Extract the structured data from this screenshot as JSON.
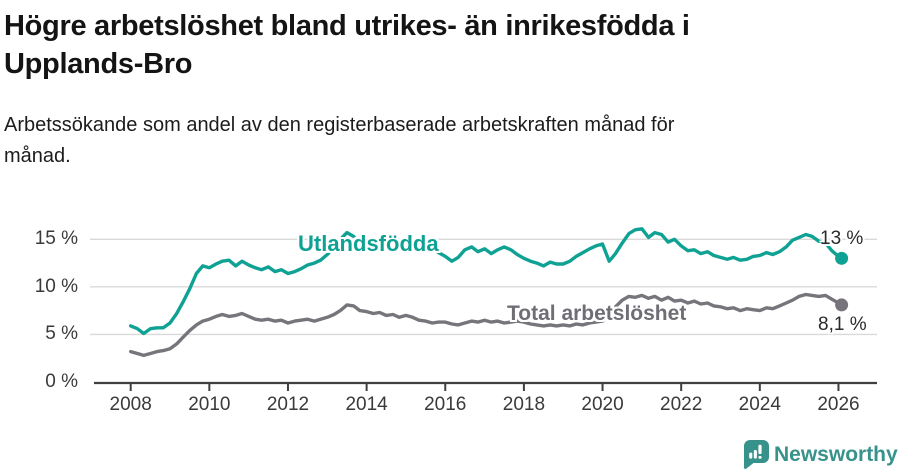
{
  "header": {
    "title_lines": [
      "Högre arbetslöshet bland utrikes- än inrikesfödda i",
      "Upplands-Bro"
    ],
    "subtitle_lines": [
      "Arbetssökande som andel av den registerbaserade arbetskraften månad för",
      "månad."
    ]
  },
  "footer": {
    "brand": "Newsworthy",
    "logo_icon": "bar-chart-speech-bubble-icon",
    "brand_color": "#37928B"
  },
  "colors": {
    "utlandsfodda": "#0FA294",
    "total_arbetsloshet": "#77757B",
    "grid": "#D9D9D9",
    "axis": "#3F3F3F",
    "tick_text": "#3A3A3A",
    "annotation_text": "#2B2B2B"
  },
  "chart_data": {
    "type": "line",
    "title": "Högre arbetslöshet bland utrikes- än inrikesfödda i Upplands-Bro",
    "subtitle": "Arbetssökande som andel av den registerbaserade arbetskraften månad för månad.",
    "x_unit": "year (monthly data sampled every 2 months)",
    "ylabel": "",
    "xlabel": "",
    "ylim": [
      0,
      16.5
    ],
    "xlim": [
      2007.1,
      2027.0
    ],
    "grid": "horizontal",
    "legend": "inline labels on lines",
    "x": [
      2008,
      2008.17,
      2008.33,
      2008.5,
      2008.67,
      2008.83,
      2009,
      2009.17,
      2009.33,
      2009.5,
      2009.67,
      2009.83,
      2010,
      2010.17,
      2010.33,
      2010.5,
      2010.67,
      2010.83,
      2011,
      2011.17,
      2011.33,
      2011.5,
      2011.67,
      2011.83,
      2012,
      2012.17,
      2012.33,
      2012.5,
      2012.67,
      2012.83,
      2013,
      2013.17,
      2013.33,
      2013.5,
      2013.67,
      2013.83,
      2014,
      2014.17,
      2014.33,
      2014.5,
      2014.67,
      2014.83,
      2015,
      2015.17,
      2015.33,
      2015.5,
      2015.67,
      2015.83,
      2016,
      2016.17,
      2016.33,
      2016.5,
      2016.67,
      2016.83,
      2017,
      2017.17,
      2017.33,
      2017.5,
      2017.67,
      2017.83,
      2018,
      2018.17,
      2018.33,
      2018.5,
      2018.67,
      2018.83,
      2019,
      2019.17,
      2019.33,
      2019.5,
      2019.67,
      2019.83,
      2020,
      2020.17,
      2020.33,
      2020.5,
      2020.67,
      2020.83,
      2021,
      2021.17,
      2021.33,
      2021.5,
      2021.67,
      2021.83,
      2022,
      2022.17,
      2022.33,
      2022.5,
      2022.67,
      2022.83,
      2023,
      2023.17,
      2023.33,
      2023.5,
      2023.67,
      2023.83,
      2024,
      2024.17,
      2024.33,
      2024.5,
      2024.67,
      2024.83,
      2025,
      2025.17,
      2025.33,
      2025.5,
      2025.67,
      2025.83,
      2026,
      2026.08
    ],
    "series": [
      {
        "name": "Utlandsfödda",
        "color": "#0FA294",
        "end_label": "13 %",
        "end_value": 13.0,
        "values": [
          5.9,
          5.6,
          5.1,
          5.6,
          5.7,
          5.7,
          6.2,
          7.2,
          8.4,
          9.8,
          11.4,
          12.2,
          12.0,
          12.4,
          12.7,
          12.8,
          12.2,
          12.7,
          12.3,
          12.0,
          11.8,
          12.1,
          11.6,
          11.8,
          11.4,
          11.6,
          11.9,
          12.3,
          12.5,
          12.8,
          13.4,
          14.2,
          15.0,
          15.7,
          15.3,
          14.4,
          14.0,
          13.8,
          14.0,
          14.2,
          13.9,
          14.1,
          14.0,
          13.9,
          14.0,
          14.1,
          14.0,
          13.6,
          13.2,
          12.7,
          13.1,
          13.9,
          14.2,
          13.7,
          14.0,
          13.5,
          13.9,
          14.2,
          13.9,
          13.4,
          13.0,
          12.7,
          12.5,
          12.2,
          12.6,
          12.4,
          12.4,
          12.7,
          13.2,
          13.6,
          14.0,
          14.3,
          14.5,
          12.7,
          13.5,
          14.6,
          15.6,
          16.0,
          16.1,
          15.2,
          15.7,
          15.5,
          14.7,
          15.0,
          14.3,
          13.8,
          13.9,
          13.5,
          13.7,
          13.3,
          13.1,
          12.9,
          13.1,
          12.8,
          12.9,
          13.2,
          13.3,
          13.6,
          13.4,
          13.7,
          14.2,
          14.9,
          15.2,
          15.5,
          15.3,
          14.8,
          14.6,
          13.8,
          13.2,
          13.0
        ]
      },
      {
        "name": "Total arbetslöshet",
        "color": "#77757B",
        "end_label": "8,1 %",
        "end_value": 8.1,
        "values": [
          3.2,
          3.0,
          2.8,
          3.0,
          3.2,
          3.3,
          3.5,
          4.0,
          4.7,
          5.4,
          6.0,
          6.4,
          6.6,
          6.9,
          7.1,
          6.9,
          7.0,
          7.2,
          6.9,
          6.6,
          6.5,
          6.6,
          6.4,
          6.5,
          6.2,
          6.4,
          6.5,
          6.6,
          6.4,
          6.6,
          6.8,
          7.1,
          7.5,
          8.1,
          8.0,
          7.5,
          7.4,
          7.2,
          7.3,
          7.0,
          7.1,
          6.8,
          7.0,
          6.8,
          6.5,
          6.4,
          6.2,
          6.3,
          6.3,
          6.1,
          6.0,
          6.2,
          6.4,
          6.3,
          6.5,
          6.3,
          6.4,
          6.2,
          6.3,
          6.4,
          6.3,
          6.1,
          6.0,
          5.9,
          6.0,
          5.9,
          6.0,
          5.9,
          6.1,
          6.0,
          6.2,
          6.3,
          6.4,
          6.9,
          7.9,
          8.6,
          9.0,
          8.9,
          9.1,
          8.8,
          9.0,
          8.6,
          8.9,
          8.5,
          8.6,
          8.3,
          8.5,
          8.2,
          8.3,
          8.0,
          7.9,
          7.7,
          7.8,
          7.5,
          7.7,
          7.6,
          7.5,
          7.8,
          7.7,
          8.0,
          8.3,
          8.6,
          9.0,
          9.2,
          9.1,
          9.0,
          9.1,
          8.7,
          8.3,
          8.1
        ]
      }
    ],
    "xticks": {
      "values": [
        2008,
        2010,
        2012,
        2014,
        2016,
        2018,
        2020,
        2022,
        2024,
        2026
      ],
      "labels": [
        "2008",
        "2010",
        "2012",
        "2014",
        "2016",
        "2018",
        "2020",
        "2022",
        "2024",
        "2026"
      ]
    },
    "yticks": {
      "values": [
        0,
        5,
        10,
        15
      ],
      "labels": [
        "0 %",
        "5 %",
        "10 %",
        "15 %"
      ]
    }
  }
}
